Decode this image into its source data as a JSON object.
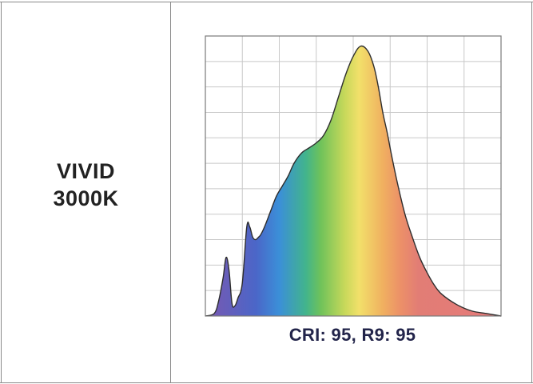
{
  "row_label": {
    "line1": "VIVID",
    "line2": "3000K"
  },
  "caption": "CRI: 95, R9: 95",
  "colors": {
    "border": "#8a8a8a",
    "grid": "#c8c8c8",
    "caption_text": "#22244a",
    "label_text": "#222222",
    "spectrum": [
      "#7a58b0",
      "#4b66c8",
      "#3b8fd8",
      "#42b48c",
      "#6fc25a",
      "#c6d85a",
      "#f2e06a",
      "#f0b060",
      "#ec9068",
      "#e27d75",
      "#e57a7a"
    ]
  },
  "chart_data": {
    "type": "area",
    "title": "",
    "xlabel": "",
    "ylabel": "",
    "xlim": [
      380,
      780
    ],
    "ylim": [
      0,
      1.1
    ],
    "grid": true,
    "grid_cols": 8,
    "grid_rows": 11,
    "fill": "visible-spectrum gradient",
    "series": [
      {
        "x": [
          380,
          392,
          398,
          404,
          408,
          412,
          416,
          420,
          424,
          430,
          436,
          440,
          444,
          448,
          452,
          455,
          460,
          468,
          476,
          484,
          492,
          500,
          510,
          520,
          530,
          540,
          550,
          560,
          570,
          580,
          590,
          600,
          608,
          614,
          620,
          626,
          632,
          640,
          650,
          660,
          670,
          680,
          690,
          700,
          720,
          740,
          760,
          780
        ],
        "y": [
          0.0,
          0.01,
          0.06,
          0.15,
          0.23,
          0.18,
          0.05,
          0.04,
          0.07,
          0.13,
          0.35,
          0.35,
          0.31,
          0.3,
          0.31,
          0.32,
          0.35,
          0.41,
          0.47,
          0.51,
          0.55,
          0.6,
          0.64,
          0.66,
          0.68,
          0.71,
          0.77,
          0.86,
          0.95,
          1.02,
          1.06,
          1.04,
          0.98,
          0.9,
          0.8,
          0.72,
          0.63,
          0.52,
          0.4,
          0.31,
          0.23,
          0.17,
          0.12,
          0.085,
          0.045,
          0.02,
          0.01,
          0.0
        ]
      }
    ]
  }
}
